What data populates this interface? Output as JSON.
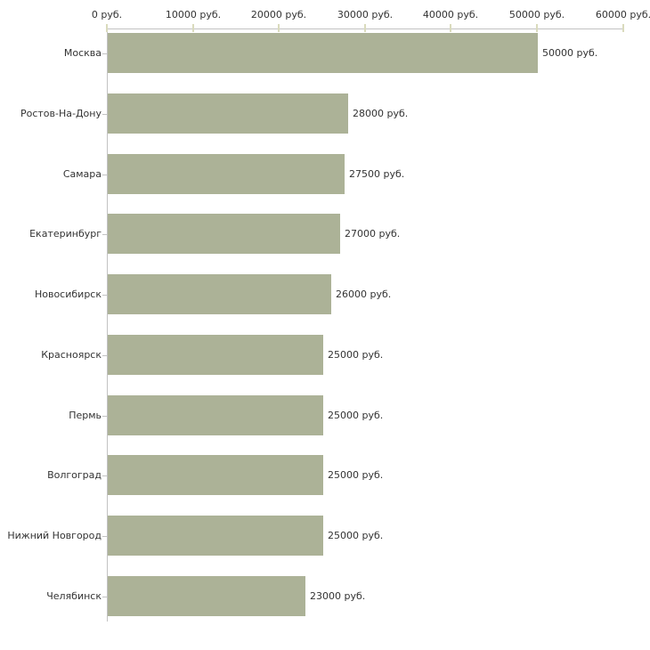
{
  "chart_data": {
    "type": "bar",
    "orientation": "horizontal",
    "title": "",
    "xlabel": "",
    "ylabel": "",
    "xlim": [
      0,
      60000
    ],
    "grid": "off",
    "legend": "none",
    "x_ticks": [
      0,
      10000,
      20000,
      30000,
      40000,
      50000,
      60000
    ],
    "x_tick_labels": [
      "0 руб.",
      "10000 руб.",
      "20000 руб.",
      "30000 руб.",
      "40000 руб.",
      "50000 руб.",
      "60000 руб."
    ],
    "categories": [
      "Москва",
      "Ростов-На-Дону",
      "Самара",
      "Екатеринбург",
      "Новосибирск",
      "Красноярск",
      "Пермь",
      "Волгоград",
      "Нижний Новгород",
      "Челябинск"
    ],
    "values": [
      50000,
      28000,
      27500,
      27000,
      26000,
      25000,
      25000,
      25000,
      25000,
      23000
    ],
    "value_labels": [
      "50000 руб.",
      "28000 руб.",
      "27500 руб.",
      "27000 руб.",
      "26000 руб.",
      "25000 руб.",
      "25000 руб.",
      "25000 руб.",
      "25000 руб.",
      "23000 руб."
    ],
    "colors": {
      "bar": "#acb297",
      "axis": "#c2c2c2",
      "tick": "#dadbbd",
      "text": "#333333",
      "background": "#ffffff"
    }
  }
}
